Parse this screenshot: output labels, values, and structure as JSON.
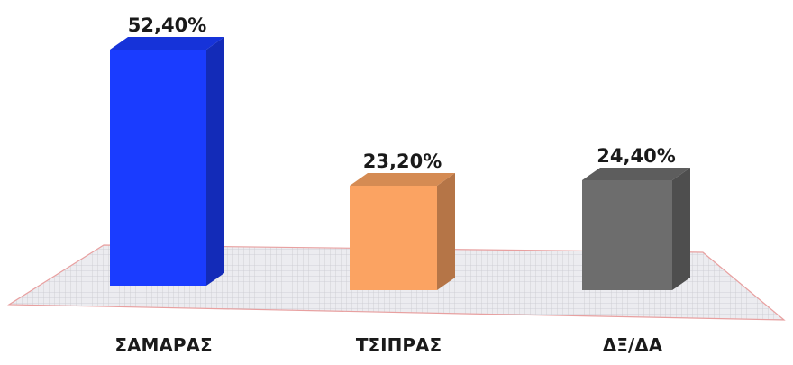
{
  "chart_data": {
    "type": "bar",
    "title": "",
    "xlabel": "",
    "ylabel": "",
    "categories": [
      "ΣΑΜΑΡΑΣ",
      "ΤΣΙΠΡΑΣ",
      "ΔΞ/ΔΑ"
    ],
    "values": [
      52.4,
      23.2,
      24.4
    ],
    "value_labels": [
      "52,40%",
      "23,20%",
      "24,40%"
    ],
    "unit": "%",
    "ylim": [
      0,
      60
    ],
    "grid": false,
    "legend": "none",
    "style": "3d-column"
  },
  "colors": {
    "bars": [
      "#1a3cff",
      "#fba362",
      "#6d6d6d"
    ],
    "floor": "#e9e9ed",
    "floor_border": "#e8a0a0"
  }
}
